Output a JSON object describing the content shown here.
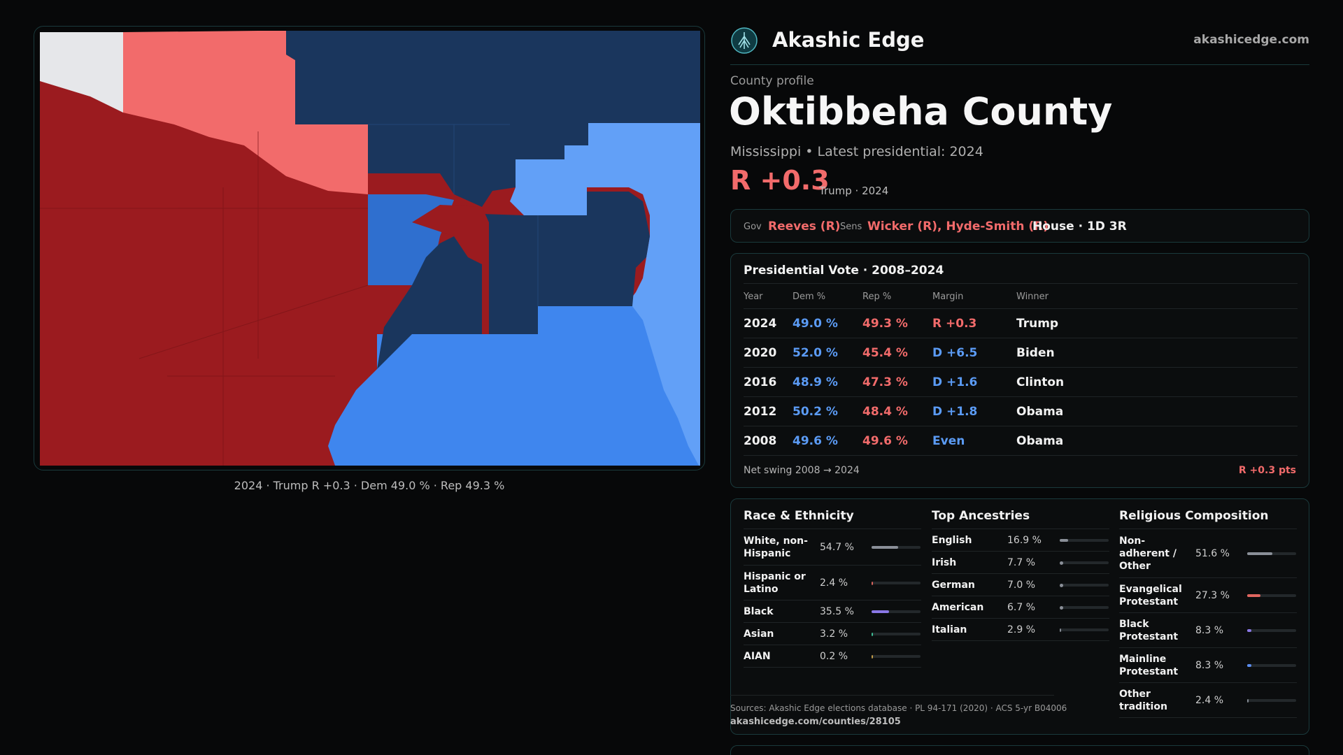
{
  "brand": {
    "name": "Akashic Edge",
    "url": "akashicedge.com",
    "logo_icon": "akashic-edge-tree-icon"
  },
  "profile": {
    "label": "County profile",
    "county": "Oktibbeha County",
    "subtitle": "Mississippi • Latest presidential: 2024",
    "margin": "R +0.3",
    "margin_note": "Trump · 2024"
  },
  "officials": {
    "gov_label": "Gov",
    "gov": "Reeves (R)",
    "sens_label": "Sens",
    "sens": "Wicker (R), Hyde-Smith (R)",
    "house": "House · 1D 3R"
  },
  "map": {
    "caption": "2024 · Trump R +0.3 · Dem 49.0 % · Rep 49.3 %",
    "colors": {
      "safe_r": "#9b1b1f",
      "lean_r": "#f26b6b",
      "tossup": "#e6e7ea",
      "safe_d": "#1a365d",
      "likely_d": "#2f6fcf",
      "lean_d": "#3f86ee",
      "tilt_d": "#62a0f7"
    }
  },
  "presidential": {
    "title": "Presidential Vote · 2008–2024",
    "headers": {
      "year": "Year",
      "dem": "Dem %",
      "rep": "Rep %",
      "margin": "Margin",
      "winner": "Winner"
    },
    "rows": [
      {
        "year": "2024",
        "dem": "49.0 %",
        "rep": "49.3 %",
        "margin": "R +0.3",
        "party": "R",
        "winner": "Trump"
      },
      {
        "year": "2020",
        "dem": "52.0 %",
        "rep": "45.4 %",
        "margin": "D +6.5",
        "party": "D",
        "winner": "Biden"
      },
      {
        "year": "2016",
        "dem": "48.9 %",
        "rep": "47.3 %",
        "margin": "D +1.6",
        "party": "D",
        "winner": "Clinton"
      },
      {
        "year": "2012",
        "dem": "50.2 %",
        "rep": "48.4 %",
        "margin": "D +1.8",
        "party": "D",
        "winner": "Obama"
      },
      {
        "year": "2008",
        "dem": "49.6 %",
        "rep": "49.6 %",
        "margin": "Even",
        "party": "D",
        "winner": "Obama"
      }
    ],
    "swing_label": "Net swing 2008 → 2024",
    "swing_value": "R +0.3 pts"
  },
  "race": {
    "title": "Race & Ethnicity",
    "items": [
      {
        "label": "White, non-Hispanic",
        "value": "54.7 %",
        "frac": 0.547,
        "color": "#8a8f98"
      },
      {
        "label": "Hispanic or Latino",
        "value": "2.4 %",
        "frac": 0.024,
        "color": "#e0665f"
      },
      {
        "label": "Black",
        "value": "35.5 %",
        "frac": 0.355,
        "color": "#8a78e6"
      },
      {
        "label": "Asian",
        "value": "3.2 %",
        "frac": 0.032,
        "color": "#3fc49a"
      },
      {
        "label": "AIAN",
        "value": "0.2 %",
        "frac": 0.002,
        "color": "#c9a14a"
      }
    ]
  },
  "ancestry": {
    "title": "Top Ancestries",
    "items": [
      {
        "label": "English",
        "value": "16.9 %",
        "frac": 0.169,
        "color": "#8a8f98"
      },
      {
        "label": "Irish",
        "value": "7.7 %",
        "frac": 0.077,
        "color": "#8a8f98"
      },
      {
        "label": "German",
        "value": "7.0 %",
        "frac": 0.07,
        "color": "#8a8f98"
      },
      {
        "label": "American",
        "value": "6.7 %",
        "frac": 0.067,
        "color": "#8a8f98"
      },
      {
        "label": "Italian",
        "value": "2.9 %",
        "frac": 0.029,
        "color": "#8a8f98"
      }
    ]
  },
  "religion": {
    "title": "Religious Composition",
    "items": [
      {
        "label": "Non-adherent / Other",
        "value": "51.6 %",
        "frac": 0.516,
        "color": "#8a8f98"
      },
      {
        "label": "Evangelical Protestant",
        "value": "27.3 %",
        "frac": 0.273,
        "color": "#e0665f"
      },
      {
        "label": "Black Protestant",
        "value": "8.3 %",
        "frac": 0.083,
        "color": "#8a78e6"
      },
      {
        "label": "Mainline Protestant",
        "value": "8.3 %",
        "frac": 0.083,
        "color": "#5b8df0"
      },
      {
        "label": "Other tradition",
        "value": "2.4 %",
        "frac": 0.024,
        "color": "#8a8f98"
      }
    ]
  },
  "sources": {
    "line": "Sources: Akashic Edge elections database · PL 94-171 (2020) · ACS 5-yr B04006",
    "url": "akashicedge.com/counties/28105"
  }
}
